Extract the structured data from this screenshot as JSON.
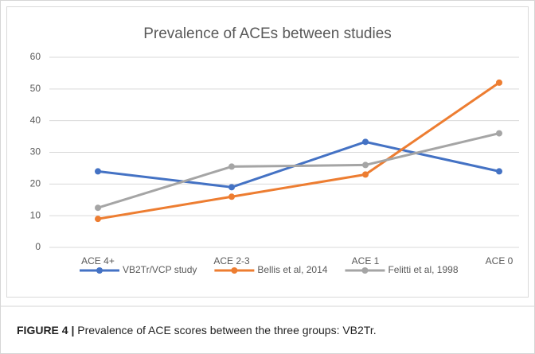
{
  "chart_data": {
    "type": "line",
    "title": "Prevalence of ACEs between studies",
    "categories": [
      "ACE 4+",
      "ACE 2-3",
      "ACE 1",
      "ACE 0"
    ],
    "series": [
      {
        "name": "VB2Tr/VCP study",
        "color": "#4472c4",
        "values": [
          24,
          19,
          33.3,
          24
        ]
      },
      {
        "name": "Bellis et al, 2014",
        "color": "#ed7d31",
        "values": [
          9,
          16,
          23,
          52
        ]
      },
      {
        "name": "Felitti et al, 1998",
        "color": "#a5a5a5",
        "values": [
          12.5,
          25.5,
          26,
          36
        ]
      }
    ],
    "ylim": [
      0,
      60
    ],
    "yticks": [
      0,
      10,
      20,
      30,
      40,
      50,
      60
    ],
    "grid": true,
    "legend": "bottom"
  },
  "caption": {
    "label": "FIGURE 4 |",
    "text": "Prevalence of ACE scores between the three groups: VB2Tr."
  }
}
